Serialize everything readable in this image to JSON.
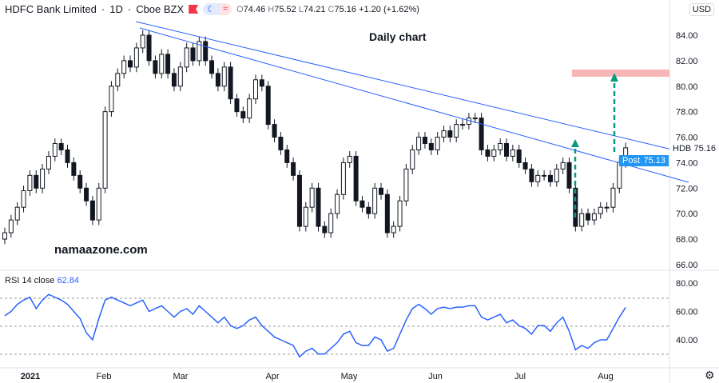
{
  "header": {
    "symbol": "HDFC Bank Limited",
    "interval": "1D",
    "exchange": "Cboe BZX",
    "open_label": "O",
    "open": "74.46",
    "high_label": "H",
    "high": "75.52",
    "low_label": "L",
    "low": "74.21",
    "close_label": "C",
    "close": "75.16",
    "change": "+1.20 (+1.62%)"
  },
  "currency": "USD",
  "annotations": {
    "title": "Daily chart",
    "watermark": "namaazone.com"
  },
  "price_tags": {
    "last": "HDB",
    "last_value": "75.16",
    "post": "Post",
    "post_value": "75.13"
  },
  "rsi": {
    "label": "RSI 14 close",
    "value": "62.84"
  },
  "colors": {
    "trendline": "#2962ff",
    "arrow": "#089981",
    "target_band": "#f7b6b6",
    "post_tag": "#2196f3",
    "rsi_line": "#2962ff"
  },
  "chart_data": {
    "type": "candlestick",
    "title": "Daily chart",
    "y_ticks": [
      "84.00",
      "82.00",
      "80.00",
      "78.00",
      "76.00",
      "74.00",
      "72.00",
      "70.00",
      "68.00",
      "66.00"
    ],
    "ylim": [
      66,
      84
    ],
    "x_ticks": [
      "2021",
      "Feb",
      "Mar",
      "Apr",
      "May",
      "Jun",
      "Jul",
      "Aug"
    ],
    "closes": [
      68.5,
      69.5,
      70.5,
      71.8,
      73,
      72,
      73.5,
      74.5,
      75.5,
      75,
      74,
      73,
      72,
      71,
      69.5,
      72,
      78,
      80,
      81,
      82,
      81.5,
      83,
      84,
      82,
      81,
      82.5,
      81,
      80,
      81.5,
      83,
      82,
      83.5,
      82,
      81,
      80,
      81.5,
      79,
      78,
      77.5,
      79,
      80.5,
      80,
      77,
      76,
      75,
      74,
      73,
      69,
      70.5,
      72,
      69,
      68.5,
      70,
      71.5,
      74,
      74.5,
      71,
      70.5,
      70,
      72,
      71.5,
      68.5,
      69,
      71,
      73.5,
      75,
      76,
      75.5,
      75,
      76,
      76.5,
      76,
      77,
      77,
      77.5,
      77.5,
      75,
      74.5,
      75,
      75.5,
      74.5,
      75,
      74,
      73.5,
      72.5,
      73,
      73,
      72.5,
      73.5,
      74,
      72,
      69,
      70,
      69.5,
      70,
      70.5,
      70.5,
      72,
      74,
      75.16
    ],
    "rsi": {
      "y_ticks": [
        "80.00",
        "60.00",
        "40.00"
      ],
      "ylim": [
        25,
        82
      ],
      "values": [
        57,
        60,
        65,
        68,
        70,
        62,
        68,
        72,
        70,
        68,
        65,
        60,
        55,
        45,
        40,
        55,
        68,
        70,
        68,
        66,
        64,
        66,
        68,
        60,
        62,
        64,
        60,
        56,
        60,
        62,
        58,
        64,
        60,
        56,
        52,
        56,
        50,
        48,
        50,
        54,
        56,
        50,
        46,
        42,
        40,
        38,
        36,
        28,
        32,
        34,
        30,
        30,
        34,
        38,
        44,
        46,
        38,
        36,
        36,
        42,
        40,
        32,
        34,
        44,
        54,
        62,
        65,
        62,
        58,
        62,
        63,
        62,
        63,
        63,
        64,
        64,
        56,
        54,
        56,
        58,
        52,
        54,
        50,
        48,
        44,
        50,
        50,
        46,
        52,
        56,
        46,
        33,
        36,
        34,
        38,
        40,
        40,
        48,
        56,
        62.84
      ]
    },
    "target_zone": [
      80.7,
      81.2
    ]
  }
}
